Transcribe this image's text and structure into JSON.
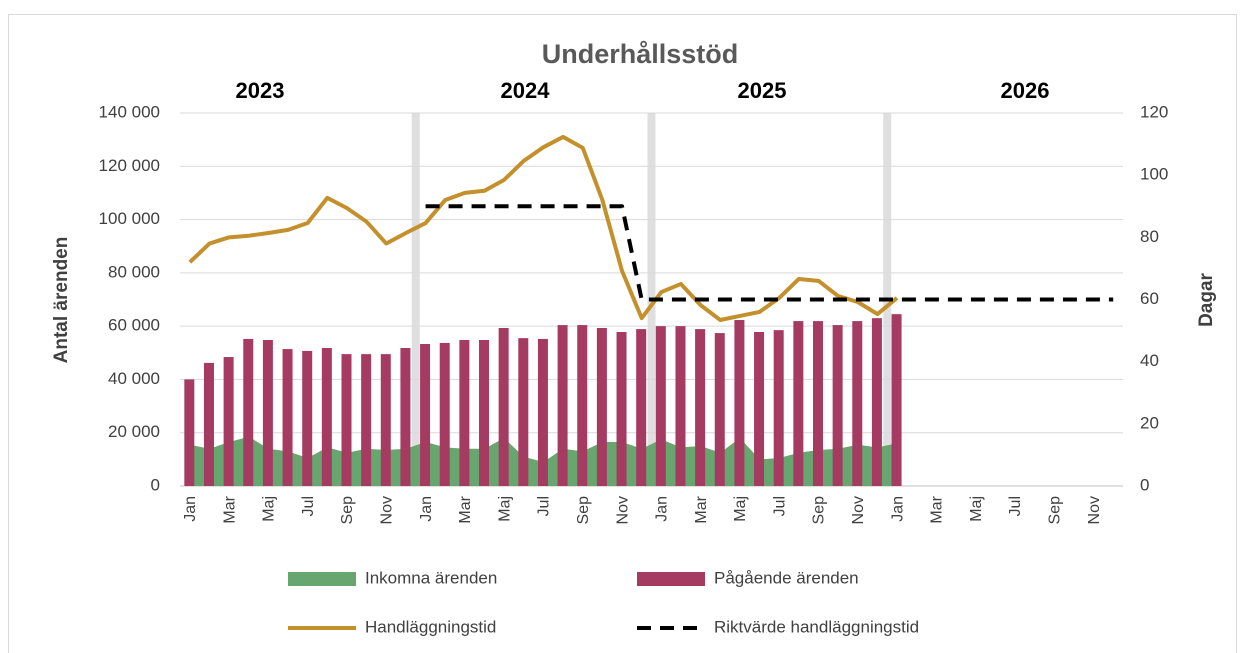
{
  "chart_data": {
    "type": "combo",
    "title": "Underhållsstöd",
    "annotations": [
      "2023",
      "2024",
      "2025",
      "2026"
    ],
    "y_label": "Antal ärenden",
    "y2_label": "Dagar",
    "categories": [
      "Jan",
      null,
      "Mar",
      null,
      "Maj",
      null,
      "Jul",
      null,
      "Sep",
      null,
      "Nov",
      null,
      "Jan",
      null,
      "Mar",
      null,
      "Maj",
      null,
      "Jul",
      null,
      "Sep",
      null,
      "Nov",
      null,
      "Jan",
      null,
      "Mar",
      null,
      "Maj",
      null,
      "Jul",
      null,
      "Sep",
      null,
      "Nov",
      null,
      "Jan",
      null,
      "Mar",
      null,
      "Maj",
      null,
      "Jul",
      null,
      "Sep",
      null,
      "Nov",
      null
    ],
    "series": [
      {
        "name": "Inkomna ärenden",
        "type": "area",
        "color": "#68a66f",
        "values": [
          15500,
          14000,
          16500,
          18500,
          14000,
          13000,
          10500,
          14500,
          12500,
          14000,
          13500,
          14000,
          16500,
          14500,
          14000,
          14000,
          18000,
          11000,
          9000,
          14000,
          13000,
          16500,
          16500,
          14000,
          17500,
          14500,
          15000,
          12500,
          18000,
          10000,
          10500,
          12500,
          13500,
          14000,
          15500,
          14500,
          16000,
          null,
          null,
          null,
          null,
          null,
          null,
          null,
          null,
          null,
          null,
          null
        ]
      },
      {
        "name": "Pågående ärenden",
        "type": "bar",
        "color": "#a63b62",
        "values": [
          40000,
          46200,
          48400,
          55200,
          54800,
          51400,
          50700,
          51800,
          49500,
          49500,
          49500,
          51800,
          53300,
          53700,
          54800,
          54800,
          59300,
          55500,
          55200,
          60400,
          60400,
          59300,
          57800,
          58900,
          60000,
          60000,
          58900,
          57400,
          62300,
          57800,
          58500,
          61900,
          61900,
          60400,
          61900,
          63000,
          64500,
          null,
          null,
          null,
          null,
          null,
          null,
          null,
          null,
          null,
          null,
          null
        ]
      },
      {
        "name": "Handläggningstid",
        "type": "line",
        "axis": "y2",
        "color": "#c4902c",
        "values": [
          72,
          78,
          80,
          80.5,
          81.4,
          82.4,
          84.6,
          92.7,
          89.4,
          85,
          78,
          81.4,
          84.6,
          92,
          94.3,
          95,
          98.5,
          104.6,
          109,
          112.3,
          108.8,
          92,
          69.2,
          54,
          62.4,
          65,
          58.2,
          53.4,
          54.7,
          56,
          60.5,
          66.6,
          66,
          61.1,
          59.2,
          55.3,
          60.5,
          null,
          null,
          null,
          null,
          null,
          null,
          null,
          null,
          null,
          null,
          null
        ]
      },
      {
        "name": "Riktvärde handläggningstid",
        "type": "dashed",
        "axis": "y2",
        "color": "#000000",
        "values": [
          null,
          null,
          null,
          null,
          null,
          null,
          null,
          null,
          null,
          null,
          null,
          null,
          90,
          90,
          90,
          90,
          90,
          90,
          90,
          90,
          90,
          90,
          90,
          60,
          60,
          60,
          60,
          60,
          60,
          60,
          60,
          60,
          60,
          60,
          60,
          60,
          60,
          60,
          60,
          60,
          60,
          60,
          60,
          60,
          60,
          60,
          60,
          60
        ]
      }
    ],
    "ylim": [
      0,
      140000
    ],
    "yticks": [
      0,
      {
        "value": 20000,
        "label": "20 000"
      },
      {
        "value": 40000,
        "label": "40 000"
      },
      {
        "value": 60000,
        "label": "60 000"
      },
      {
        "value": 80000,
        "label": "80 000"
      },
      {
        "value": 100000,
        "label": "100 000"
      },
      {
        "value": 120000,
        "label": "120 000"
      },
      {
        "value": 140000,
        "label": "140 000"
      }
    ],
    "y2lim": [
      0,
      120
    ],
    "y2ticks": [
      0,
      20,
      40,
      60,
      80,
      100,
      120
    ],
    "grid": true,
    "legend": "bottom"
  }
}
